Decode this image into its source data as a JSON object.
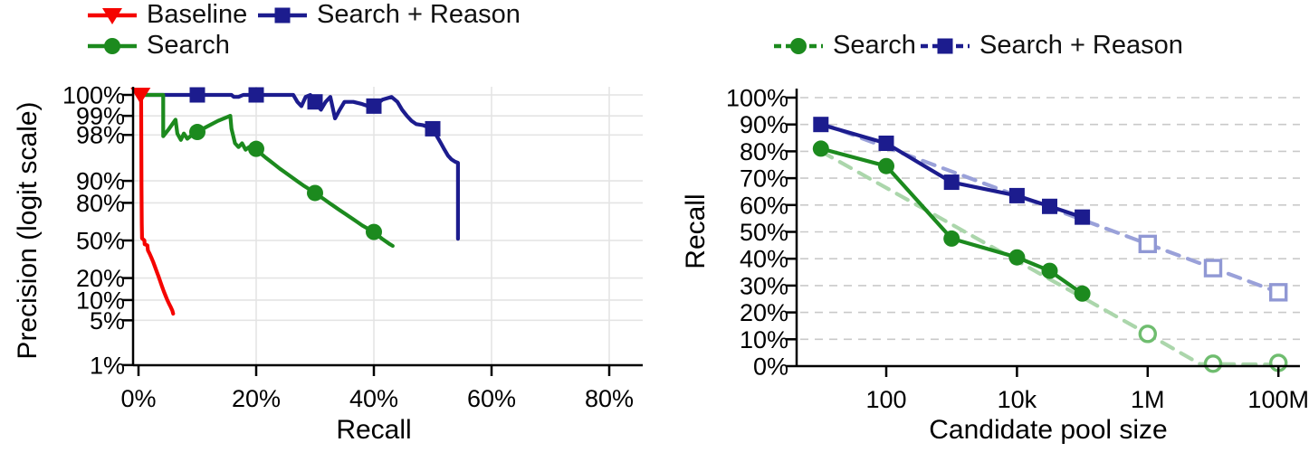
{
  "chart_data": [
    {
      "id": "precision-recall-curve",
      "type": "line",
      "title": "",
      "xlabel": "Recall",
      "ylabel": "Precision (logit scale)",
      "x_scale": "linear-percent",
      "y_scale": "logit-percent",
      "xlim": [
        -1,
        86
      ],
      "ylim": [
        1,
        100
      ],
      "grid": {
        "color": "#e4e4e4",
        "style": "solid"
      },
      "x_ticks": [
        {
          "v": 0,
          "label": "0%"
        },
        {
          "v": 20,
          "label": "20%"
        },
        {
          "v": 40,
          "label": "40%"
        },
        {
          "v": 60,
          "label": "60%"
        },
        {
          "v": 80,
          "label": "80%"
        }
      ],
      "y_ticks": [
        {
          "v": 100,
          "label": "100%"
        },
        {
          "v": 99,
          "label": "99%"
        },
        {
          "v": 98,
          "label": "98%"
        },
        {
          "v": 90,
          "label": "90%"
        },
        {
          "v": 80,
          "label": "80%"
        },
        {
          "v": 50,
          "label": "50%"
        },
        {
          "v": 20,
          "label": "20%"
        },
        {
          "v": 10,
          "label": "10%"
        },
        {
          "v": 5,
          "label": "5%"
        },
        {
          "v": 1,
          "label": "1%"
        }
      ],
      "legend": [
        {
          "label": "Baseline",
          "marker": "triangle-down",
          "color": "#f50400",
          "line": "solid"
        },
        {
          "label": "Search + Reason",
          "marker": "square",
          "color": "#1c1c8e",
          "line": "solid"
        },
        {
          "label": "Search",
          "marker": "circle",
          "color": "#1c8a1e",
          "line": "solid"
        }
      ],
      "series": [
        {
          "name": "Search + Reason",
          "color": "#1c1c8e",
          "marker": "square",
          "line": "solid",
          "points": [
            [
              0.3,
              100
            ],
            [
              15.6,
              100
            ],
            [
              15.8,
              99.7
            ],
            [
              16.2,
              99.5
            ],
            [
              17,
              99.5
            ],
            [
              17.8,
              99.6
            ],
            [
              18.6,
              99.8
            ],
            [
              19.2,
              100
            ],
            [
              25,
              100
            ],
            [
              25.6,
              99.8
            ],
            [
              26.3,
              99.6
            ],
            [
              27,
              99.4
            ],
            [
              27.7,
              99.3
            ],
            [
              28.4,
              99.5
            ],
            [
              29.2,
              99.6
            ],
            [
              30,
              99.4
            ],
            [
              31,
              99.2
            ],
            [
              31.8,
              99.4
            ],
            [
              32.6,
              99.5
            ],
            [
              33.4,
              98.9
            ],
            [
              34.2,
              99.2
            ],
            [
              35,
              99.4
            ],
            [
              36.5,
              99.4
            ],
            [
              38,
              99.35
            ],
            [
              39,
              99.3
            ],
            [
              40,
              99.3
            ],
            [
              41.5,
              99.45
            ],
            [
              43,
              99.5
            ],
            [
              44,
              99.4
            ],
            [
              44.8,
              99.2
            ],
            [
              45.6,
              99.0
            ],
            [
              46.4,
              98.8
            ],
            [
              47.2,
              98.65
            ],
            [
              48.3,
              98.6
            ],
            [
              49.2,
              98.5
            ],
            [
              50,
              98.4
            ],
            [
              50.7,
              97.9
            ],
            [
              51.4,
              97.3
            ],
            [
              52,
              96.6
            ],
            [
              52.6,
              95.8
            ],
            [
              53.2,
              95.2
            ],
            [
              53.8,
              94.8
            ],
            [
              54.3,
              94.6
            ],
            [
              54.3,
              51.5
            ]
          ],
          "marker_points": [
            [
              10,
              100
            ],
            [
              20,
              100
            ],
            [
              30,
              99.4
            ],
            [
              40,
              99.3
            ],
            [
              50,
              98.4
            ]
          ]
        },
        {
          "name": "Search",
          "color": "#1c8a1e",
          "marker": "circle",
          "line": "solid",
          "points": [
            [
              0.3,
              100
            ],
            [
              4.2,
              100
            ],
            [
              4.2,
              97.9
            ],
            [
              5.2,
              98.4
            ],
            [
              6.3,
              98.85
            ],
            [
              6.6,
              98.1
            ],
            [
              7.2,
              97.6
            ],
            [
              7.7,
              98.1
            ],
            [
              8.3,
              97.7
            ],
            [
              9.1,
              98
            ],
            [
              10,
              98.2
            ],
            [
              11.5,
              98.5
            ],
            [
              13.5,
              98.8
            ],
            [
              15.6,
              99
            ],
            [
              15.8,
              98.4
            ],
            [
              16.4,
              97.3
            ],
            [
              17,
              96.9
            ],
            [
              17.6,
              97.3
            ],
            [
              18.2,
              96.6
            ],
            [
              18.8,
              96.9
            ],
            [
              19.4,
              96.5
            ],
            [
              20,
              96.7
            ],
            [
              20.8,
              96.1
            ],
            [
              21.6,
              95.5
            ],
            [
              22.4,
              94.9
            ],
            [
              23.2,
              94.2
            ],
            [
              24,
              93.4
            ],
            [
              24.8,
              92.6
            ],
            [
              25.6,
              91.7
            ],
            [
              26.4,
              90.7
            ],
            [
              27.2,
              89.6
            ],
            [
              28,
              88.4
            ],
            [
              28.8,
              87.2
            ],
            [
              29.4,
              86
            ],
            [
              30,
              85.2
            ],
            [
              30.8,
              83.6
            ],
            [
              31.6,
              81.9
            ],
            [
              32.4,
              80
            ],
            [
              33.2,
              78
            ],
            [
              34,
              75.9
            ],
            [
              34.8,
              73.7
            ],
            [
              35.6,
              71.4
            ],
            [
              36.4,
              68.9
            ],
            [
              37.2,
              66.3
            ],
            [
              38,
              63.6
            ],
            [
              38.8,
              61.2
            ],
            [
              39.4,
              59.5
            ],
            [
              40,
              57.8
            ],
            [
              40.7,
              54.5
            ],
            [
              41.4,
              51.5
            ],
            [
              42.1,
              48.8
            ],
            [
              42.7,
              46.6
            ],
            [
              43.2,
              45
            ]
          ],
          "marker_points": [
            [
              10,
              98.2
            ],
            [
              20,
              96.7
            ],
            [
              30,
              85.2
            ],
            [
              40,
              57.8
            ]
          ]
        },
        {
          "name": "Baseline",
          "color": "#f50400",
          "marker": "triangle-down",
          "line": "solid",
          "points": [
            [
              0.25,
              100
            ],
            [
              0.45,
              100
            ],
            [
              0.5,
              88
            ],
            [
              0.55,
              65
            ],
            [
              0.6,
              52
            ],
            [
              0.9,
              50.5
            ],
            [
              1,
              50
            ],
            [
              1.05,
              46.5
            ],
            [
              1.5,
              45.5
            ],
            [
              1.6,
              41
            ],
            [
              1.9,
              38
            ],
            [
              2.2,
              34.5
            ],
            [
              2.5,
              31
            ],
            [
              2.8,
              27.5
            ],
            [
              3.1,
              24
            ],
            [
              3.4,
              21
            ],
            [
              3.7,
              18
            ],
            [
              4,
              15.5
            ],
            [
              4.3,
              13.3
            ],
            [
              4.6,
              11.5
            ],
            [
              4.9,
              10
            ],
            [
              5.2,
              8.8
            ],
            [
              5.5,
              7.8
            ],
            [
              5.75,
              7
            ],
            [
              5.9,
              6.3
            ]
          ],
          "marker_points": [
            [
              0.35,
              100
            ]
          ]
        }
      ]
    },
    {
      "id": "recall-vs-candidate-pool-size",
      "type": "line",
      "title": "",
      "xlabel": "Candidate pool size",
      "ylabel": "Recall",
      "x_scale": "log10",
      "y_scale": "linear-percent",
      "xlim": [
        4,
        200000000
      ],
      "ylim": [
        0,
        100
      ],
      "grid": {
        "color": "#c9c9c9",
        "style": "dashed"
      },
      "x_ticks": [
        {
          "v": 100,
          "label": "100"
        },
        {
          "v": 10000,
          "label": "10k"
        },
        {
          "v": 1000000,
          "label": "1M"
        },
        {
          "v": 100000000,
          "label": "100M"
        }
      ],
      "y_ticks": [
        {
          "v": 0,
          "label": "0%"
        },
        {
          "v": 10,
          "label": "10%"
        },
        {
          "v": 20,
          "label": "20%"
        },
        {
          "v": 30,
          "label": "30%"
        },
        {
          "v": 40,
          "label": "40%"
        },
        {
          "v": 50,
          "label": "50%"
        },
        {
          "v": 60,
          "label": "60%"
        },
        {
          "v": 70,
          "label": "70%"
        },
        {
          "v": 80,
          "label": "80%"
        },
        {
          "v": 90,
          "label": "90%"
        },
        {
          "v": 100,
          "label": "100%"
        }
      ],
      "legend": [
        {
          "label": "Search",
          "marker": "circle",
          "color": "#1c8a1e",
          "line": "dashed"
        },
        {
          "label": "Search + Reason",
          "marker": "square",
          "color": "#1c1c8e",
          "line": "dashed"
        }
      ],
      "series": [
        {
          "name": "Search extrapolation",
          "color": "#abd6ab",
          "marker": "circle-open",
          "marker_color": "#6fbd6f",
          "line": "dashed",
          "points": [
            [
              10,
              80
            ],
            [
              1000000,
              12
            ],
            [
              6300000,
              0.8
            ],
            [
              100000000,
              0.6
            ]
          ],
          "marker_points": [
            [
              1000000,
              12
            ],
            [
              10000000,
              0.9
            ],
            [
              100000000,
              1.2
            ]
          ]
        },
        {
          "name": "Search + Reason extrapolation",
          "color": "#9aa1d9",
          "marker": "square-open",
          "marker_color": "#9098d4",
          "line": "dashed",
          "points": [
            [
              10,
              90.5
            ],
            [
              100000000,
              27.5
            ]
          ],
          "marker_points": [
            [
              1000000,
              45.5
            ],
            [
              10000000,
              36.5
            ],
            [
              100000000,
              27.5
            ]
          ]
        },
        {
          "name": "Search",
          "color": "#1c8a1e",
          "marker": "circle",
          "line": "solid",
          "points": [
            [
              10,
              81
            ],
            [
              100,
              74.5
            ],
            [
              1000,
              47.5
            ],
            [
              10000,
              40.5
            ],
            [
              31623,
              35.5
            ],
            [
              100000,
              27
            ]
          ]
        },
        {
          "name": "Search + Reason",
          "color": "#1c1c8e",
          "marker": "square",
          "line": "solid",
          "points": [
            [
              10,
              90
            ],
            [
              100,
              83
            ],
            [
              1000,
              68.5
            ],
            [
              10000,
              63.5
            ],
            [
              31623,
              59.5
            ],
            [
              100000,
              55.5
            ]
          ]
        }
      ]
    }
  ]
}
